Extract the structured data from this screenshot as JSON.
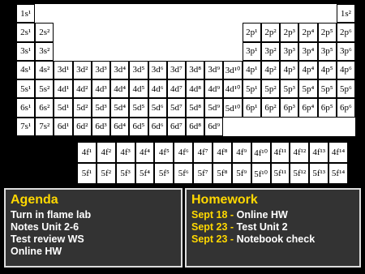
{
  "periodic_table": {
    "rows": [
      [
        "1s¹",
        null,
        null,
        null,
        null,
        null,
        null,
        null,
        null,
        null,
        null,
        null,
        null,
        null,
        null,
        null,
        null,
        "1s²"
      ],
      [
        "2s¹",
        "2s²",
        null,
        null,
        null,
        null,
        null,
        null,
        null,
        null,
        null,
        null,
        "2p¹",
        "2p²",
        "2p³",
        "2p⁴",
        "2p⁵",
        "2p⁶"
      ],
      [
        "3s¹",
        "3s²",
        null,
        null,
        null,
        null,
        null,
        null,
        null,
        null,
        null,
        null,
        "3p¹",
        "3p²",
        "3p³",
        "3p⁴",
        "3p⁵",
        "3p⁶"
      ],
      [
        "4s¹",
        "4s²",
        "3d¹",
        "3d²",
        "3d³",
        "3d⁴",
        "3d⁵",
        "3d⁶",
        "3d⁷",
        "3d⁸",
        "3d⁹",
        "3d¹⁰",
        "4p¹",
        "4p²",
        "4p³",
        "4p⁴",
        "4p⁵",
        "4p⁶"
      ],
      [
        "5s¹",
        "5s²",
        "4d¹",
        "4d²",
        "4d³",
        "4d⁴",
        "4d⁵",
        "4d⁶",
        "4d⁷",
        "4d⁸",
        "4d⁹",
        "4d¹⁰",
        "5p¹",
        "5p²",
        "5p³",
        "5p⁴",
        "5p⁵",
        "5p⁶"
      ],
      [
        "6s¹",
        "6s²",
        "5d¹",
        "5d²",
        "5d³",
        "5d⁴",
        "5d⁵",
        "5d⁶",
        "5d⁷",
        "5d⁸",
        "5d⁹",
        "5d¹⁰",
        "6p¹",
        "6p²",
        "6p³",
        "6p⁴",
        "6p⁵",
        "6p⁶"
      ],
      [
        "7s¹",
        "7s²",
        "6d¹",
        "6d²",
        "6d³",
        "6d⁴",
        "6d⁵",
        "6d⁶",
        "6d⁷",
        "6d⁸",
        "6d⁹",
        null,
        null,
        null,
        null,
        null,
        null,
        null
      ]
    ],
    "f_rows": [
      [
        "4f¹",
        "4f²",
        "4f³",
        "4f⁴",
        "4f⁵",
        "4f⁶",
        "4f⁷",
        "4f⁸",
        "4f⁹",
        "4f¹⁰",
        "4f¹¹",
        "4f¹²",
        "4f¹³",
        "4f¹⁴"
      ],
      [
        "5f¹",
        "5f²",
        "5f³",
        "5f⁴",
        "5f⁵",
        "5f⁶",
        "5f⁷",
        "5f⁸",
        "5f⁹",
        "5f¹⁰",
        "5f¹¹",
        "5f¹²",
        "5f¹³",
        "5f¹⁴"
      ]
    ]
  },
  "agenda": {
    "title": "Agenda",
    "items": [
      "Turn in flame lab",
      "Notes Unit 2-6",
      "Test review WS",
      "Online HW"
    ]
  },
  "homework": {
    "title": "Homework",
    "items": [
      {
        "date": "Sept 18 -",
        "task": "Online HW"
      },
      {
        "date": "Sept 23 -",
        "task": "Test Unit 2"
      },
      {
        "date": "Sept 23 -",
        "task": "Notebook check"
      }
    ]
  }
}
